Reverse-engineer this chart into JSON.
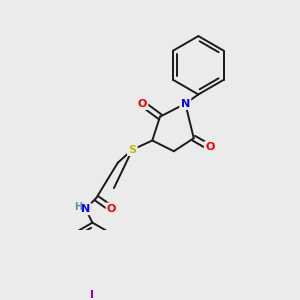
{
  "background_color": "#ebebeb",
  "bond_color": "#1a1a1a",
  "atom_colors": {
    "N": "#0000ee",
    "O": "#ee0000",
    "S": "#bbbb00",
    "I": "#9900aa",
    "H": "#5f8fa0",
    "C": "#1a1a1a"
  },
  "bond_lw": 1.4,
  "font_size": 8.0
}
